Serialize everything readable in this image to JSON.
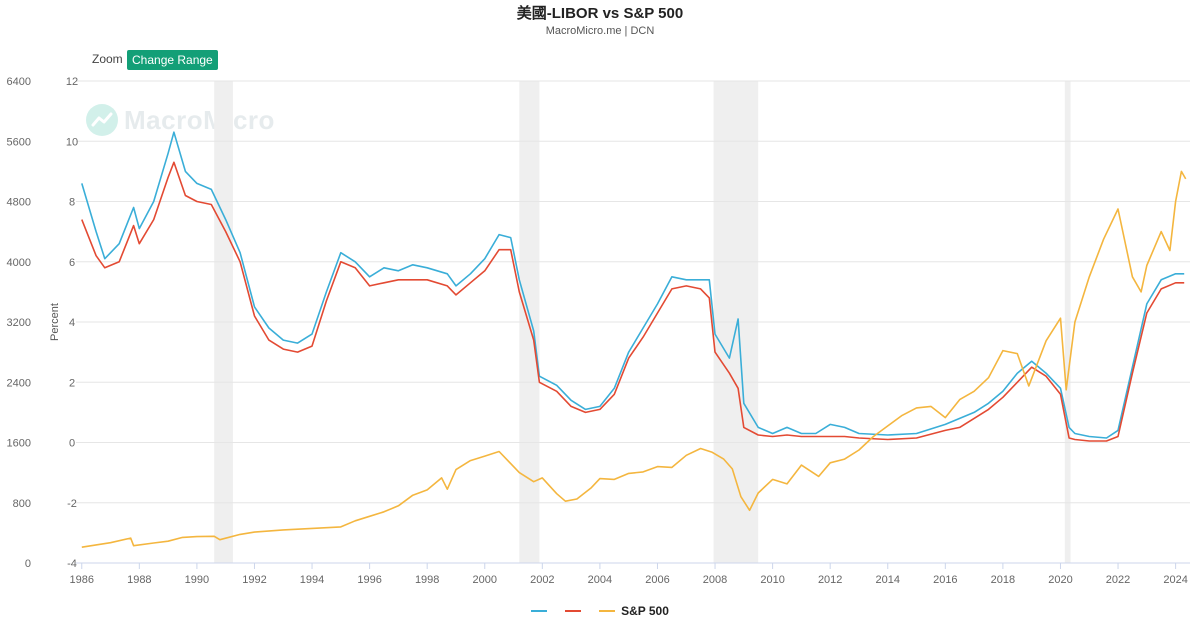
{
  "header": {
    "title": "美國-LIBOR vs S&P 500",
    "subtitle": "MacroMicro.me | DCN"
  },
  "toolbar": {
    "zoom_label": "Zoom",
    "change_range_label": "Change Range"
  },
  "watermark": {
    "text": "MacroMicro"
  },
  "chart_data": {
    "type": "line",
    "title": "美國-LIBOR vs S&P 500",
    "xlabel": "",
    "ylabel_right_axis": "Percent",
    "x_range": [
      1985.8,
      2024.5
    ],
    "x_ticks": [
      "1986",
      "1988",
      "1990",
      "1992",
      "1994",
      "1996",
      "1998",
      "2000",
      "2002",
      "2004",
      "2006",
      "2008",
      "2010",
      "2012",
      "2014",
      "2016",
      "2018",
      "2020",
      "2022",
      "2024"
    ],
    "y_left": {
      "range": [
        0,
        6400
      ],
      "ticks": [
        "0",
        "800",
        "1600",
        "2400",
        "3200",
        "4000",
        "4800",
        "5600",
        "6400"
      ]
    },
    "y_right": {
      "range": [
        -4,
        12
      ],
      "ticks": [
        "-4",
        "-2",
        "0",
        "2",
        "4",
        "6",
        "8",
        "10",
        "12"
      ],
      "label": "Percent"
    },
    "grid": true,
    "legend_position": "bottom",
    "recessions": [
      [
        1990.6,
        1991.25
      ],
      [
        2001.2,
        2001.9
      ],
      [
        2007.95,
        2009.5
      ],
      [
        2020.15,
        2020.35
      ]
    ],
    "series": [
      {
        "name": "",
        "axis": "right",
        "color": "#3aaed8",
        "points": [
          [
            1986.0,
            8.6
          ],
          [
            1986.5,
            7.0
          ],
          [
            1986.8,
            6.1
          ],
          [
            1987.3,
            6.6
          ],
          [
            1987.8,
            7.8
          ],
          [
            1988.0,
            7.1
          ],
          [
            1988.5,
            8.0
          ],
          [
            1989.0,
            9.6
          ],
          [
            1989.2,
            10.3
          ],
          [
            1989.6,
            9.0
          ],
          [
            1990.0,
            8.6
          ],
          [
            1990.5,
            8.4
          ],
          [
            1991.0,
            7.4
          ],
          [
            1991.5,
            6.3
          ],
          [
            1992.0,
            4.5
          ],
          [
            1992.5,
            3.8
          ],
          [
            1993.0,
            3.4
          ],
          [
            1993.5,
            3.3
          ],
          [
            1994.0,
            3.6
          ],
          [
            1994.5,
            5.0
          ],
          [
            1995.0,
            6.3
          ],
          [
            1995.5,
            6.0
          ],
          [
            1996.0,
            5.5
          ],
          [
            1996.5,
            5.8
          ],
          [
            1997.0,
            5.7
          ],
          [
            1997.5,
            5.9
          ],
          [
            1998.0,
            5.8
          ],
          [
            1998.7,
            5.6
          ],
          [
            1999.0,
            5.2
          ],
          [
            1999.5,
            5.6
          ],
          [
            2000.0,
            6.1
          ],
          [
            2000.5,
            6.9
          ],
          [
            2000.9,
            6.8
          ],
          [
            2001.2,
            5.4
          ],
          [
            2001.7,
            3.7
          ],
          [
            2001.9,
            2.2
          ],
          [
            2002.5,
            1.9
          ],
          [
            2003.0,
            1.4
          ],
          [
            2003.5,
            1.1
          ],
          [
            2004.0,
            1.2
          ],
          [
            2004.5,
            1.8
          ],
          [
            2005.0,
            3.0
          ],
          [
            2005.5,
            3.8
          ],
          [
            2006.0,
            4.6
          ],
          [
            2006.5,
            5.5
          ],
          [
            2007.0,
            5.4
          ],
          [
            2007.5,
            5.4
          ],
          [
            2007.8,
            5.4
          ],
          [
            2008.0,
            3.6
          ],
          [
            2008.5,
            2.8
          ],
          [
            2008.8,
            4.1
          ],
          [
            2009.0,
            1.3
          ],
          [
            2009.5,
            0.5
          ],
          [
            2010.0,
            0.3
          ],
          [
            2010.5,
            0.5
          ],
          [
            2011.0,
            0.3
          ],
          [
            2011.5,
            0.3
          ],
          [
            2012.0,
            0.6
          ],
          [
            2012.5,
            0.5
          ],
          [
            2013.0,
            0.3
          ],
          [
            2014.0,
            0.25
          ],
          [
            2015.0,
            0.3
          ],
          [
            2016.0,
            0.6
          ],
          [
            2016.5,
            0.8
          ],
          [
            2017.0,
            1.0
          ],
          [
            2017.5,
            1.3
          ],
          [
            2018.0,
            1.7
          ],
          [
            2018.5,
            2.3
          ],
          [
            2019.0,
            2.7
          ],
          [
            2019.5,
            2.3
          ],
          [
            2020.0,
            1.8
          ],
          [
            2020.3,
            0.5
          ],
          [
            2020.5,
            0.3
          ],
          [
            2021.0,
            0.2
          ],
          [
            2021.6,
            0.15
          ],
          [
            2022.0,
            0.4
          ],
          [
            2022.5,
            2.5
          ],
          [
            2023.0,
            4.6
          ],
          [
            2023.5,
            5.4
          ],
          [
            2024.0,
            5.6
          ],
          [
            2024.3,
            5.6
          ]
        ]
      },
      {
        "name": "",
        "axis": "right",
        "color": "#e34a33",
        "points": [
          [
            1986.0,
            7.4
          ],
          [
            1986.5,
            6.2
          ],
          [
            1986.8,
            5.8
          ],
          [
            1987.3,
            6.0
          ],
          [
            1987.8,
            7.2
          ],
          [
            1988.0,
            6.6
          ],
          [
            1988.5,
            7.4
          ],
          [
            1989.0,
            8.8
          ],
          [
            1989.2,
            9.3
          ],
          [
            1989.6,
            8.2
          ],
          [
            1990.0,
            8.0
          ],
          [
            1990.5,
            7.9
          ],
          [
            1991.0,
            7.0
          ],
          [
            1991.5,
            6.0
          ],
          [
            1992.0,
            4.2
          ],
          [
            1992.5,
            3.4
          ],
          [
            1993.0,
            3.1
          ],
          [
            1993.5,
            3.0
          ],
          [
            1994.0,
            3.2
          ],
          [
            1994.5,
            4.7
          ],
          [
            1995.0,
            6.0
          ],
          [
            1995.5,
            5.8
          ],
          [
            1996.0,
            5.2
          ],
          [
            1996.5,
            5.3
          ],
          [
            1997.0,
            5.4
          ],
          [
            1997.5,
            5.4
          ],
          [
            1998.0,
            5.4
          ],
          [
            1998.7,
            5.2
          ],
          [
            1999.0,
            4.9
          ],
          [
            1999.5,
            5.3
          ],
          [
            2000.0,
            5.7
          ],
          [
            2000.5,
            6.4
          ],
          [
            2000.9,
            6.4
          ],
          [
            2001.2,
            5.0
          ],
          [
            2001.7,
            3.4
          ],
          [
            2001.9,
            2.0
          ],
          [
            2002.5,
            1.7
          ],
          [
            2003.0,
            1.2
          ],
          [
            2003.5,
            1.0
          ],
          [
            2004.0,
            1.1
          ],
          [
            2004.5,
            1.6
          ],
          [
            2005.0,
            2.8
          ],
          [
            2005.5,
            3.5
          ],
          [
            2006.0,
            4.3
          ],
          [
            2006.5,
            5.1
          ],
          [
            2007.0,
            5.2
          ],
          [
            2007.5,
            5.1
          ],
          [
            2007.8,
            4.8
          ],
          [
            2008.0,
            3.0
          ],
          [
            2008.5,
            2.3
          ],
          [
            2008.8,
            1.8
          ],
          [
            2009.0,
            0.5
          ],
          [
            2009.5,
            0.25
          ],
          [
            2010.0,
            0.2
          ],
          [
            2010.5,
            0.25
          ],
          [
            2011.0,
            0.2
          ],
          [
            2011.5,
            0.2
          ],
          [
            2012.0,
            0.2
          ],
          [
            2012.5,
            0.2
          ],
          [
            2013.0,
            0.15
          ],
          [
            2014.0,
            0.1
          ],
          [
            2015.0,
            0.15
          ],
          [
            2016.0,
            0.4
          ],
          [
            2016.5,
            0.5
          ],
          [
            2017.0,
            0.8
          ],
          [
            2017.5,
            1.1
          ],
          [
            2018.0,
            1.5
          ],
          [
            2018.5,
            2.0
          ],
          [
            2019.0,
            2.5
          ],
          [
            2019.5,
            2.2
          ],
          [
            2020.0,
            1.6
          ],
          [
            2020.3,
            0.15
          ],
          [
            2020.5,
            0.1
          ],
          [
            2021.0,
            0.05
          ],
          [
            2021.6,
            0.05
          ],
          [
            2022.0,
            0.2
          ],
          [
            2022.5,
            2.3
          ],
          [
            2023.0,
            4.3
          ],
          [
            2023.5,
            5.1
          ],
          [
            2024.0,
            5.3
          ],
          [
            2024.3,
            5.3
          ]
        ]
      },
      {
        "name": "S&P 500",
        "axis": "left",
        "color": "#f4b63f",
        "points": [
          [
            1986.0,
            210
          ],
          [
            1986.5,
            240
          ],
          [
            1987.0,
            270
          ],
          [
            1987.7,
            330
          ],
          [
            1987.8,
            230
          ],
          [
            1988.5,
            265
          ],
          [
            1989.0,
            290
          ],
          [
            1989.5,
            340
          ],
          [
            1990.0,
            350
          ],
          [
            1990.6,
            355
          ],
          [
            1990.8,
            310
          ],
          [
            1991.5,
            380
          ],
          [
            1992.0,
            410
          ],
          [
            1993.0,
            440
          ],
          [
            1994.0,
            460
          ],
          [
            1995.0,
            480
          ],
          [
            1995.5,
            560
          ],
          [
            1996.0,
            620
          ],
          [
            1996.5,
            680
          ],
          [
            1997.0,
            760
          ],
          [
            1997.5,
            900
          ],
          [
            1998.0,
            970
          ],
          [
            1998.5,
            1130
          ],
          [
            1998.7,
            980
          ],
          [
            1999.0,
            1240
          ],
          [
            1999.5,
            1360
          ],
          [
            2000.0,
            1420
          ],
          [
            2000.5,
            1480
          ],
          [
            2000.9,
            1320
          ],
          [
            2001.2,
            1200
          ],
          [
            2001.7,
            1080
          ],
          [
            2002.0,
            1130
          ],
          [
            2002.5,
            920
          ],
          [
            2002.8,
            820
          ],
          [
            2003.2,
            850
          ],
          [
            2003.7,
            1000
          ],
          [
            2004.0,
            1120
          ],
          [
            2004.5,
            1110
          ],
          [
            2005.0,
            1190
          ],
          [
            2005.5,
            1210
          ],
          [
            2006.0,
            1280
          ],
          [
            2006.5,
            1270
          ],
          [
            2007.0,
            1430
          ],
          [
            2007.5,
            1520
          ],
          [
            2007.9,
            1470
          ],
          [
            2008.3,
            1380
          ],
          [
            2008.6,
            1250
          ],
          [
            2008.9,
            880
          ],
          [
            2009.2,
            700
          ],
          [
            2009.5,
            930
          ],
          [
            2010.0,
            1110
          ],
          [
            2010.5,
            1050
          ],
          [
            2011.0,
            1300
          ],
          [
            2011.6,
            1150
          ],
          [
            2012.0,
            1330
          ],
          [
            2012.5,
            1380
          ],
          [
            2013.0,
            1500
          ],
          [
            2013.5,
            1680
          ],
          [
            2014.0,
            1820
          ],
          [
            2014.5,
            1960
          ],
          [
            2015.0,
            2060
          ],
          [
            2015.5,
            2080
          ],
          [
            2016.0,
            1930
          ],
          [
            2016.5,
            2170
          ],
          [
            2017.0,
            2280
          ],
          [
            2017.5,
            2460
          ],
          [
            2018.0,
            2820
          ],
          [
            2018.5,
            2780
          ],
          [
            2018.9,
            2350
          ],
          [
            2019.5,
            2950
          ],
          [
            2020.0,
            3250
          ],
          [
            2020.2,
            2300
          ],
          [
            2020.5,
            3200
          ],
          [
            2021.0,
            3800
          ],
          [
            2021.5,
            4300
          ],
          [
            2022.0,
            4700
          ],
          [
            2022.5,
            3800
          ],
          [
            2022.8,
            3600
          ],
          [
            2023.0,
            3950
          ],
          [
            2023.5,
            4400
          ],
          [
            2023.8,
            4150
          ],
          [
            2024.0,
            4800
          ],
          [
            2024.2,
            5200
          ],
          [
            2024.35,
            5100
          ]
        ]
      }
    ]
  }
}
